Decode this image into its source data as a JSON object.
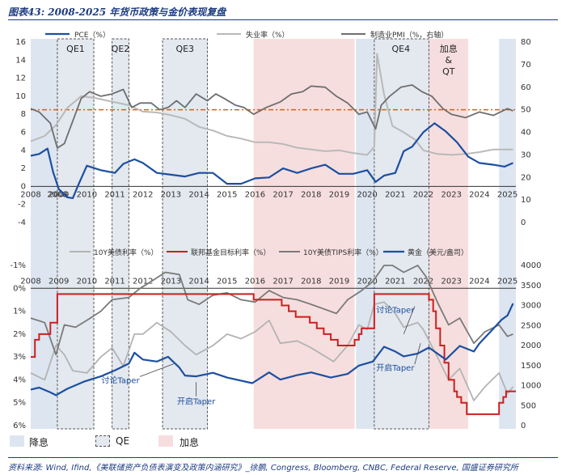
{
  "title": "图表43: 2008-2025 年货币政策与金价表现复盘",
  "source": "资料来源: Wind, Ifind,《美联储资产负债表演变及政策内涵研究》_徐鹏, Congress, Bloomberg, CNBC, Federal Reserve, 国盛证券研究所",
  "colors": {
    "band_cut": "#dde5f0",
    "band_qe_fill": "#e4e8ef",
    "band_hike": "#f7dede",
    "pce": "#1c4fa0",
    "unemp": "#b9b9b9",
    "pmi": "#6e6e6e",
    "pmi_ref": "#d0641e",
    "ty10": "#b3b3b3",
    "fedfunds": "#cc1f1f",
    "tips": "#7a7a7a",
    "gold": "#1c4fa0"
  },
  "bottom_legend": {
    "cut": "降息",
    "qe": "QE",
    "hike": "加息"
  },
  "chart_data": [
    {
      "type": "line",
      "x_range": [
        2008.0,
        2025.3
      ],
      "x_ticks": [
        "2008",
        "2008",
        "2009",
        "2010",
        "2011",
        "2012",
        "2013",
        "2014",
        "2015",
        "2016",
        "2017",
        "2018",
        "2019",
        "2020",
        "2021",
        "2022",
        "2023",
        "2024",
        "2025"
      ],
      "ylim_left": [
        -4,
        16
      ],
      "yticks_left": [
        "-4",
        "-2",
        "0",
        "2",
        "4",
        "6",
        "8",
        "10",
        "12",
        "14",
        "16"
      ],
      "ylim_right": [
        0,
        80
      ],
      "yticks_right": [
        "0",
        "10",
        "20",
        "30",
        "40",
        "50",
        "60",
        "70",
        "80"
      ],
      "pmi_reference_line": 50,
      "legend": {
        "pce": "PCE（%）",
        "unemp": "失业率（%）",
        "pmi": "制造业PMI（%，右轴）"
      },
      "periods_cut": [
        [
          2008.0,
          2008.95
        ],
        [
          2019.6,
          2020.25
        ],
        [
          2024.7,
          2025.3
        ]
      ],
      "periods_qe": [
        [
          2008.95,
          2010.25
        ],
        [
          2010.9,
          2011.5
        ],
        [
          2012.7,
          2014.3
        ],
        [
          2020.25,
          2022.2
        ]
      ],
      "periods_hike": [
        [
          2015.95,
          2019.55
        ],
        [
          2022.2,
          2023.6
        ]
      ],
      "labels": [
        "QE1",
        "QE2",
        "QE3",
        "QE4",
        "加息",
        "&",
        "QT"
      ],
      "series": [
        {
          "name": "PCE（%）",
          "axis": "left",
          "x": [
            2008.0,
            2008.3,
            2008.6,
            2008.8,
            2009.0,
            2009.3,
            2009.5,
            2009.7,
            2010.0,
            2010.5,
            2011.0,
            2011.3,
            2011.7,
            2012.0,
            2012.5,
            2013.0,
            2013.5,
            2014.0,
            2014.5,
            2015.0,
            2015.5,
            2016.0,
            2016.5,
            2017.0,
            2017.5,
            2018.0,
            2018.5,
            2019.0,
            2019.5,
            2020.0,
            2020.3,
            2020.6,
            2021.0,
            2021.3,
            2021.6,
            2022.0,
            2022.4,
            2022.8,
            2023.2,
            2023.6,
            2024.0,
            2024.5,
            2024.9,
            2025.2
          ],
          "values": [
            3.4,
            3.6,
            4.2,
            1.6,
            -0.3,
            -1.2,
            -1.3,
            0.2,
            2.3,
            1.8,
            1.5,
            2.5,
            3.0,
            2.6,
            1.5,
            1.3,
            1.1,
            1.5,
            1.5,
            0.3,
            0.3,
            0.9,
            1.0,
            2.0,
            1.5,
            2.0,
            2.4,
            1.4,
            1.4,
            1.8,
            0.5,
            1.2,
            1.5,
            3.9,
            4.4,
            6.0,
            7.0,
            6.1,
            4.9,
            3.3,
            2.6,
            2.4,
            2.2,
            2.6
          ]
        },
        {
          "name": "失业率（%）",
          "axis": "left",
          "x": [
            2008.0,
            2008.5,
            2008.9,
            2009.3,
            2009.8,
            2010.3,
            2010.9,
            2011.5,
            2012.0,
            2012.5,
            2013.0,
            2013.5,
            2014.0,
            2014.5,
            2015.0,
            2015.5,
            2016.0,
            2016.5,
            2017.0,
            2017.5,
            2018.0,
            2018.5,
            2019.0,
            2019.5,
            2020.0,
            2020.25,
            2020.35,
            2020.6,
            2020.9,
            2021.3,
            2021.7,
            2022.0,
            2022.5,
            2023.0,
            2023.5,
            2024.0,
            2024.5,
            2025.2
          ],
          "values": [
            5.0,
            5.6,
            6.8,
            8.7,
            10.0,
            9.8,
            9.4,
            9.0,
            8.3,
            8.2,
            7.9,
            7.5,
            6.6,
            6.2,
            5.6,
            5.3,
            4.9,
            4.9,
            4.7,
            4.3,
            4.1,
            3.9,
            4.0,
            3.7,
            3.5,
            4.4,
            14.7,
            10.2,
            6.7,
            6.0,
            5.2,
            4.0,
            3.6,
            3.5,
            3.6,
            3.8,
            4.1,
            4.1
          ]
        },
        {
          "name": "制造业PMI（%，右轴）",
          "axis": "right",
          "x": [
            2008.0,
            2008.3,
            2008.7,
            2008.95,
            2009.2,
            2009.5,
            2009.8,
            2010.1,
            2010.5,
            2010.9,
            2011.3,
            2011.6,
            2011.9,
            2012.3,
            2012.6,
            2012.9,
            2013.2,
            2013.5,
            2013.9,
            2014.3,
            2014.6,
            2014.9,
            2015.3,
            2015.6,
            2015.95,
            2016.4,
            2016.9,
            2017.3,
            2017.7,
            2018.0,
            2018.5,
            2018.9,
            2019.3,
            2019.7,
            2020.0,
            2020.3,
            2020.5,
            2020.8,
            2021.2,
            2021.6,
            2021.95,
            2022.3,
            2022.7,
            2023.0,
            2023.5,
            2024.0,
            2024.5,
            2025.0,
            2025.2
          ],
          "values": [
            50.5,
            49.0,
            44.0,
            33.0,
            35.0,
            45.0,
            55.0,
            58.0,
            56.0,
            57.0,
            59.0,
            51.0,
            53.0,
            53.0,
            50.0,
            51.0,
            54.0,
            51.0,
            57.0,
            54.0,
            57.0,
            55.0,
            52.0,
            51.0,
            48.0,
            51.0,
            53.5,
            57.0,
            58.0,
            60.5,
            60.0,
            56.0,
            53.0,
            48.0,
            49.0,
            41.5,
            52.0,
            56.0,
            60.0,
            61.0,
            58.0,
            56.0,
            50.5,
            48.0,
            46.5,
            49.0,
            47.5,
            50.5,
            49.5
          ]
        }
      ]
    },
    {
      "type": "line",
      "x_range": [
        2008.0,
        2025.3
      ],
      "x_ticks": [
        "2008",
        "2009",
        "2010",
        "2011",
        "2012",
        "2013",
        "2014",
        "2015",
        "2016",
        "2017",
        "2018",
        "2019",
        "2020",
        "2021",
        "2022",
        "2023",
        "2024",
        "2025"
      ],
      "ylim_left": [
        6,
        -1
      ],
      "yticks_left": [
        "-1%",
        "0%",
        "1%",
        "2%",
        "3%",
        "4%",
        "5%",
        "6%"
      ],
      "ylim_right": [
        0,
        4000
      ],
      "yticks_right": [
        "0",
        "500",
        "1000",
        "1500",
        "2000",
        "2500",
        "3000",
        "3500",
        "4000"
      ],
      "legend": {
        "ty10": "10Y美债利率（%）",
        "fedfunds": "联邦基金目标利率（%）",
        "tips": "10Y美债TIPS利率（%）",
        "gold": "黄金（美元/盎司）"
      },
      "annotations": [
        "讨论Taper",
        "开启Taper",
        "讨论Taper",
        "开启Taper"
      ],
      "series": [
        {
          "name": "10Y美债利率（%）",
          "axis": "left",
          "x": [
            2008.0,
            2008.5,
            2008.9,
            2009.2,
            2009.5,
            2010.0,
            2010.5,
            2010.9,
            2011.3,
            2011.7,
            2012.0,
            2012.5,
            2013.0,
            2013.5,
            2013.9,
            2014.5,
            2015.0,
            2015.5,
            2016.0,
            2016.5,
            2016.9,
            2017.5,
            2018.0,
            2018.8,
            2019.3,
            2019.7,
            2020.0,
            2020.25,
            2020.6,
            2021.0,
            2021.3,
            2021.8,
            2022.0,
            2022.5,
            2022.9,
            2023.3,
            2023.8,
            2024.2,
            2024.7,
            2025.0,
            2025.2
          ],
          "values": [
            3.7,
            4.0,
            2.5,
            2.9,
            3.6,
            3.7,
            3.0,
            2.6,
            3.4,
            2.0,
            2.0,
            1.5,
            1.9,
            2.5,
            2.9,
            2.5,
            2.0,
            2.2,
            1.9,
            1.4,
            2.4,
            2.3,
            2.6,
            3.2,
            2.5,
            1.6,
            1.8,
            0.7,
            0.6,
            1.1,
            1.7,
            1.5,
            1.8,
            3.0,
            4.0,
            3.5,
            4.9,
            4.3,
            3.7,
            4.6,
            4.3
          ]
        },
        {
          "name": "联邦基金目标利率（%）",
          "axis": "left",
          "x": [
            2008.0,
            2008.15,
            2008.3,
            2008.7,
            2008.95,
            2015.95,
            2016.95,
            2017.2,
            2017.45,
            2017.95,
            2018.2,
            2018.45,
            2018.7,
            2018.95,
            2019.55,
            2019.7,
            2019.8,
            2020.2,
            2020.25,
            2022.2,
            2022.35,
            2022.45,
            2022.6,
            2022.75,
            2022.9,
            2023.1,
            2023.2,
            2023.35,
            2023.55,
            2024.7,
            2024.85,
            2024.95,
            2025.3
          ],
          "values": [
            3.0,
            2.25,
            2.0,
            1.5,
            0.25,
            0.5,
            0.75,
            1.0,
            1.25,
            1.5,
            1.75,
            2.0,
            2.25,
            2.5,
            2.25,
            2.0,
            1.75,
            1.75,
            0.25,
            0.5,
            1.0,
            1.75,
            2.5,
            3.25,
            4.0,
            4.5,
            4.75,
            5.0,
            5.5,
            5.0,
            4.75,
            4.5,
            4.5
          ]
        },
        {
          "name": "10Y美债TIPS利率（%）",
          "axis": "left",
          "x": [
            2008.0,
            2008.5,
            2008.9,
            2009.2,
            2009.6,
            2010.0,
            2010.5,
            2010.9,
            2011.5,
            2011.9,
            2012.3,
            2012.8,
            2013.3,
            2013.6,
            2014.0,
            2014.5,
            2015.0,
            2015.5,
            2016.0,
            2016.5,
            2017.0,
            2017.5,
            2018.0,
            2018.9,
            2019.3,
            2019.8,
            2020.2,
            2020.6,
            2020.9,
            2021.3,
            2021.8,
            2022.1,
            2022.5,
            2022.9,
            2023.3,
            2023.8,
            2024.2,
            2024.7,
            2025.0,
            2025.2
          ],
          "values": [
            1.3,
            1.5,
            2.9,
            1.6,
            1.7,
            1.4,
            1.0,
            0.5,
            0.4,
            0.0,
            -0.3,
            -0.7,
            -0.6,
            0.5,
            0.7,
            0.3,
            0.2,
            0.5,
            0.6,
            0.1,
            0.4,
            0.5,
            0.7,
            1.1,
            0.5,
            0.1,
            -0.3,
            -1.0,
            -1.0,
            -0.7,
            -1.0,
            -0.5,
            0.6,
            1.6,
            1.3,
            2.4,
            1.9,
            1.6,
            2.1,
            2.0
          ]
        },
        {
          "name": "黄金（美元/盎司）",
          "axis": "right",
          "x": [
            2008.0,
            2008.3,
            2008.7,
            2008.9,
            2009.3,
            2009.9,
            2010.5,
            2011.0,
            2011.5,
            2011.7,
            2012.0,
            2012.5,
            2012.9,
            2013.3,
            2013.5,
            2013.9,
            2014.5,
            2015.0,
            2015.9,
            2016.5,
            2016.9,
            2017.5,
            2018.0,
            2018.7,
            2019.3,
            2019.7,
            2020.2,
            2020.6,
            2021.0,
            2021.3,
            2021.8,
            2022.2,
            2022.8,
            2023.3,
            2023.8,
            2024.0,
            2024.4,
            2024.8,
            2025.0,
            2025.2
          ],
          "values": [
            900,
            950,
            830,
            760,
            920,
            1100,
            1230,
            1380,
            1550,
            1820,
            1650,
            1600,
            1720,
            1450,
            1250,
            1230,
            1320,
            1200,
            1060,
            1330,
            1150,
            1260,
            1330,
            1200,
            1290,
            1500,
            1600,
            1970,
            1850,
            1730,
            1800,
            1950,
            1650,
            1990,
            1850,
            2050,
            2350,
            2650,
            2750,
            3050
          ]
        }
      ]
    }
  ]
}
